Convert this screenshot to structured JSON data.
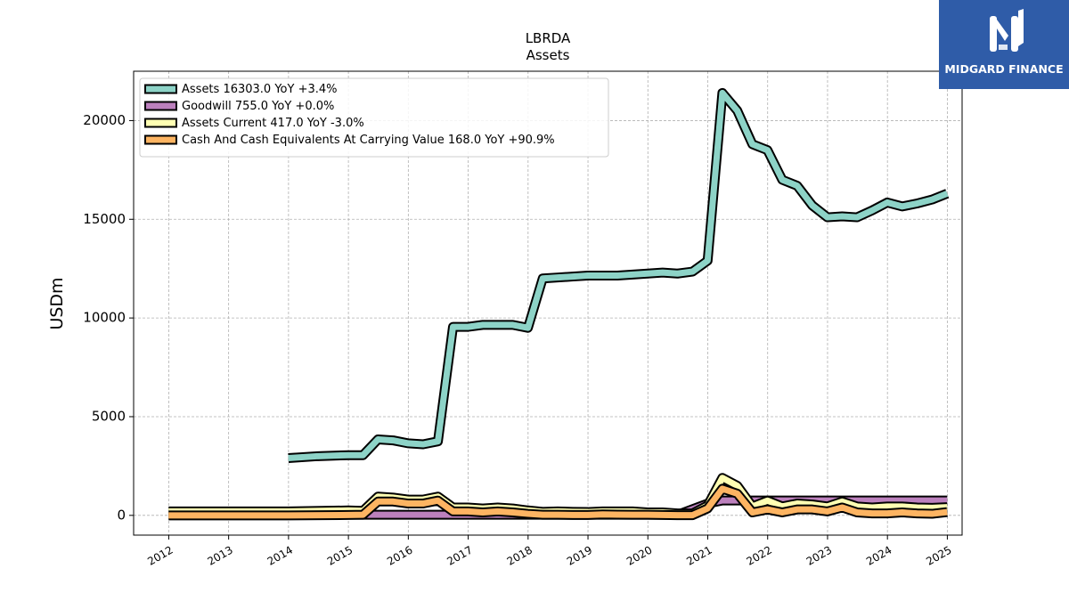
{
  "brand": {
    "name": "MIDGARD FINANCE",
    "bg": "#2f5ca8",
    "icon": "midgard-m-logo-icon"
  },
  "chart_data": {
    "type": "area",
    "title": "LBRDA",
    "subtitle": "Assets",
    "xlabel": "",
    "ylabel": "USDm",
    "xlim": [
      "2011-06",
      "2025-04"
    ],
    "ylim": [
      -1000,
      22500
    ],
    "x_ticks": [
      "2012",
      "2013",
      "2014",
      "2015",
      "2016",
      "2017",
      "2018",
      "2019",
      "2020",
      "2021",
      "2022",
      "2023",
      "2024",
      "2025"
    ],
    "y_ticks": [
      0,
      5000,
      10000,
      15000,
      20000
    ],
    "grid": true,
    "legend_position": "top-left",
    "series": [
      {
        "name": "Assets  16303.0 YoY +3.4%",
        "color": "#8dd3c7",
        "points": [
          [
            "2013-12-31",
            2900
          ],
          [
            "2014-06-30",
            3000
          ],
          [
            "2014-12-31",
            3050
          ],
          [
            "2015-03-31",
            3050
          ],
          [
            "2015-06-30",
            3850
          ],
          [
            "2015-09-30",
            3800
          ],
          [
            "2015-12-31",
            3650
          ],
          [
            "2016-03-31",
            3600
          ],
          [
            "2016-06-30",
            3750
          ],
          [
            "2016-09-30",
            9550
          ],
          [
            "2016-12-31",
            9550
          ],
          [
            "2017-03-31",
            9650
          ],
          [
            "2017-06-30",
            9650
          ],
          [
            "2017-09-30",
            9650
          ],
          [
            "2017-12-31",
            9500
          ],
          [
            "2018-03-31",
            12000
          ],
          [
            "2018-06-30",
            12050
          ],
          [
            "2018-09-30",
            12100
          ],
          [
            "2018-12-31",
            12150
          ],
          [
            "2019-03-31",
            12150
          ],
          [
            "2019-06-30",
            12150
          ],
          [
            "2019-09-30",
            12200
          ],
          [
            "2019-12-31",
            12250
          ],
          [
            "2020-03-31",
            12300
          ],
          [
            "2020-06-30",
            12250
          ],
          [
            "2020-09-30",
            12350
          ],
          [
            "2020-12-31",
            12900
          ],
          [
            "2021-03-31",
            21400
          ],
          [
            "2021-06-30",
            20500
          ],
          [
            "2021-09-30",
            18800
          ],
          [
            "2021-12-31",
            18500
          ],
          [
            "2022-03-31",
            17000
          ],
          [
            "2022-06-30",
            16700
          ],
          [
            "2022-09-30",
            15700
          ],
          [
            "2022-12-31",
            15100
          ],
          [
            "2023-03-31",
            15150
          ],
          [
            "2023-06-30",
            15100
          ],
          [
            "2023-09-30",
            15450
          ],
          [
            "2023-12-31",
            15850
          ],
          [
            "2024-03-31",
            15650
          ],
          [
            "2024-06-30",
            15800
          ],
          [
            "2024-09-30",
            16000
          ],
          [
            "2024-12-31",
            16303
          ]
        ]
      },
      {
        "name": "Goodwill  755.0 YoY +0.0%",
        "color": "#bc80bd",
        "points": [
          [
            "2013-12-31",
            30
          ],
          [
            "2014-12-31",
            40
          ],
          [
            "2015-03-31",
            30
          ],
          [
            "2015-06-30",
            30
          ],
          [
            "2016-06-30",
            30
          ],
          [
            "2020-06-30",
            30
          ],
          [
            "2020-12-31",
            600
          ],
          [
            "2021-03-31",
            755
          ],
          [
            "2024-12-31",
            755
          ]
        ]
      },
      {
        "name": "Assets Current  417.0 YoY -3.0%",
        "color": "#ffffb3",
        "points": [
          [
            "2011-12-31",
            200
          ],
          [
            "2013-12-31",
            200
          ],
          [
            "2014-12-31",
            250
          ],
          [
            "2015-03-31",
            230
          ],
          [
            "2015-06-30",
            950
          ],
          [
            "2015-09-30",
            900
          ],
          [
            "2015-12-31",
            800
          ],
          [
            "2016-03-31",
            800
          ],
          [
            "2016-06-30",
            950
          ],
          [
            "2016-09-30",
            400
          ],
          [
            "2016-12-31",
            400
          ],
          [
            "2017-03-31",
            350
          ],
          [
            "2017-06-30",
            400
          ],
          [
            "2017-09-30",
            350
          ],
          [
            "2017-12-31",
            250
          ],
          [
            "2018-03-31",
            180
          ],
          [
            "2018-06-30",
            200
          ],
          [
            "2018-09-30",
            180
          ],
          [
            "2018-12-31",
            170
          ],
          [
            "2019-03-31",
            200
          ],
          [
            "2019-06-30",
            200
          ],
          [
            "2019-09-30",
            200
          ],
          [
            "2019-12-31",
            150
          ],
          [
            "2020-03-31",
            150
          ],
          [
            "2020-06-30",
            100
          ],
          [
            "2020-09-30",
            100
          ],
          [
            "2020-12-31",
            500
          ],
          [
            "2021-03-31",
            1900
          ],
          [
            "2021-06-30",
            1500
          ],
          [
            "2021-09-30",
            450
          ],
          [
            "2021-12-31",
            750
          ],
          [
            "2022-03-31",
            450
          ],
          [
            "2022-06-30",
            600
          ],
          [
            "2022-09-30",
            550
          ],
          [
            "2022-12-31",
            450
          ],
          [
            "2023-03-31",
            700
          ],
          [
            "2023-06-30",
            450
          ],
          [
            "2023-09-30",
            400
          ],
          [
            "2023-12-31",
            450
          ],
          [
            "2024-03-31",
            450
          ],
          [
            "2024-06-30",
            400
          ],
          [
            "2024-09-30",
            380
          ],
          [
            "2024-12-31",
            417
          ]
        ]
      },
      {
        "name": "Cash And Cash Equivalents At Carrying Value  168.0 YoY +90.9%",
        "color": "#fdb462",
        "points": [
          [
            "2011-12-31",
            0
          ],
          [
            "2013-12-31",
            0
          ],
          [
            "2014-12-31",
            20
          ],
          [
            "2015-03-31",
            30
          ],
          [
            "2015-06-30",
            700
          ],
          [
            "2015-09-30",
            700
          ],
          [
            "2015-12-31",
            600
          ],
          [
            "2016-03-31",
            600
          ],
          [
            "2016-06-30",
            750
          ],
          [
            "2016-09-30",
            200
          ],
          [
            "2016-12-31",
            200
          ],
          [
            "2017-03-31",
            150
          ],
          [
            "2017-06-30",
            200
          ],
          [
            "2017-09-30",
            150
          ],
          [
            "2017-12-31",
            80
          ],
          [
            "2018-03-31",
            30
          ],
          [
            "2018-06-30",
            30
          ],
          [
            "2018-09-30",
            20
          ],
          [
            "2018-12-31",
            20
          ],
          [
            "2019-03-31",
            50
          ],
          [
            "2019-06-30",
            40
          ],
          [
            "2019-09-30",
            30
          ],
          [
            "2019-12-31",
            30
          ],
          [
            "2020-03-31",
            20
          ],
          [
            "2020-06-30",
            10
          ],
          [
            "2020-09-30",
            10
          ],
          [
            "2020-12-31",
            350
          ],
          [
            "2021-03-31",
            1350
          ],
          [
            "2021-06-30",
            1100
          ],
          [
            "2021-09-30",
            150
          ],
          [
            "2021-12-31",
            300
          ],
          [
            "2022-03-31",
            150
          ],
          [
            "2022-06-30",
            300
          ],
          [
            "2022-09-30",
            300
          ],
          [
            "2022-12-31",
            200
          ],
          [
            "2023-03-31",
            400
          ],
          [
            "2023-06-30",
            150
          ],
          [
            "2023-09-30",
            100
          ],
          [
            "2023-12-31",
            100
          ],
          [
            "2024-03-31",
            150
          ],
          [
            "2024-06-30",
            100
          ],
          [
            "2024-09-30",
            80
          ],
          [
            "2024-12-31",
            168
          ]
        ]
      }
    ]
  }
}
